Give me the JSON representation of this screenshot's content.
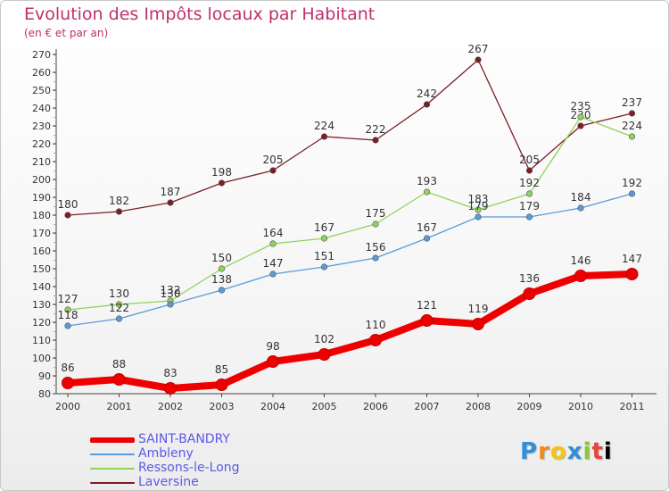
{
  "title": "Evolution des Impôts locaux par Habitant",
  "subtitle": "(en € et par an)",
  "logo": "Proxiti",
  "chart_data": {
    "type": "line",
    "x": [
      "2000",
      "2001",
      "2002",
      "2003",
      "2004",
      "2005",
      "2006",
      "2007",
      "2008",
      "2009",
      "2010",
      "2011"
    ],
    "ylim": [
      80,
      270
    ],
    "yticks": [
      80,
      90,
      100,
      110,
      120,
      130,
      140,
      150,
      160,
      170,
      180,
      190,
      200,
      210,
      220,
      230,
      240,
      250,
      260,
      270
    ],
    "grid": false,
    "legend_position": "bottom-left",
    "series": [
      {
        "name": "Laversine",
        "color": "#7b1e27",
        "values": [
          180,
          182,
          187,
          198,
          205,
          224,
          222,
          242,
          267,
          205,
          230,
          237
        ]
      },
      {
        "name": "Ressons-le-Long",
        "color": "#8fd35a",
        "values": [
          127,
          130,
          132,
          150,
          164,
          167,
          175,
          193,
          183,
          192,
          235,
          224
        ]
      },
      {
        "name": "Ambleny",
        "color": "#5b9bd5",
        "values": [
          118,
          122,
          130,
          138,
          147,
          151,
          156,
          167,
          179,
          179,
          184,
          192
        ]
      },
      {
        "name": "SAINT-BANDRY",
        "color": "#ee0000",
        "values": [
          86,
          88,
          83,
          85,
          98,
          102,
          110,
          121,
          119,
          136,
          146,
          147
        ]
      }
    ],
    "legend": [
      {
        "name": "SAINT-BANDRY",
        "color": "#ee0000"
      },
      {
        "name": "Ambleny",
        "color": "#5b9bd5"
      },
      {
        "name": "Ressons-le-Long",
        "color": "#8fd35a"
      },
      {
        "name": "Laversine",
        "color": "#7b1e27"
      }
    ]
  }
}
